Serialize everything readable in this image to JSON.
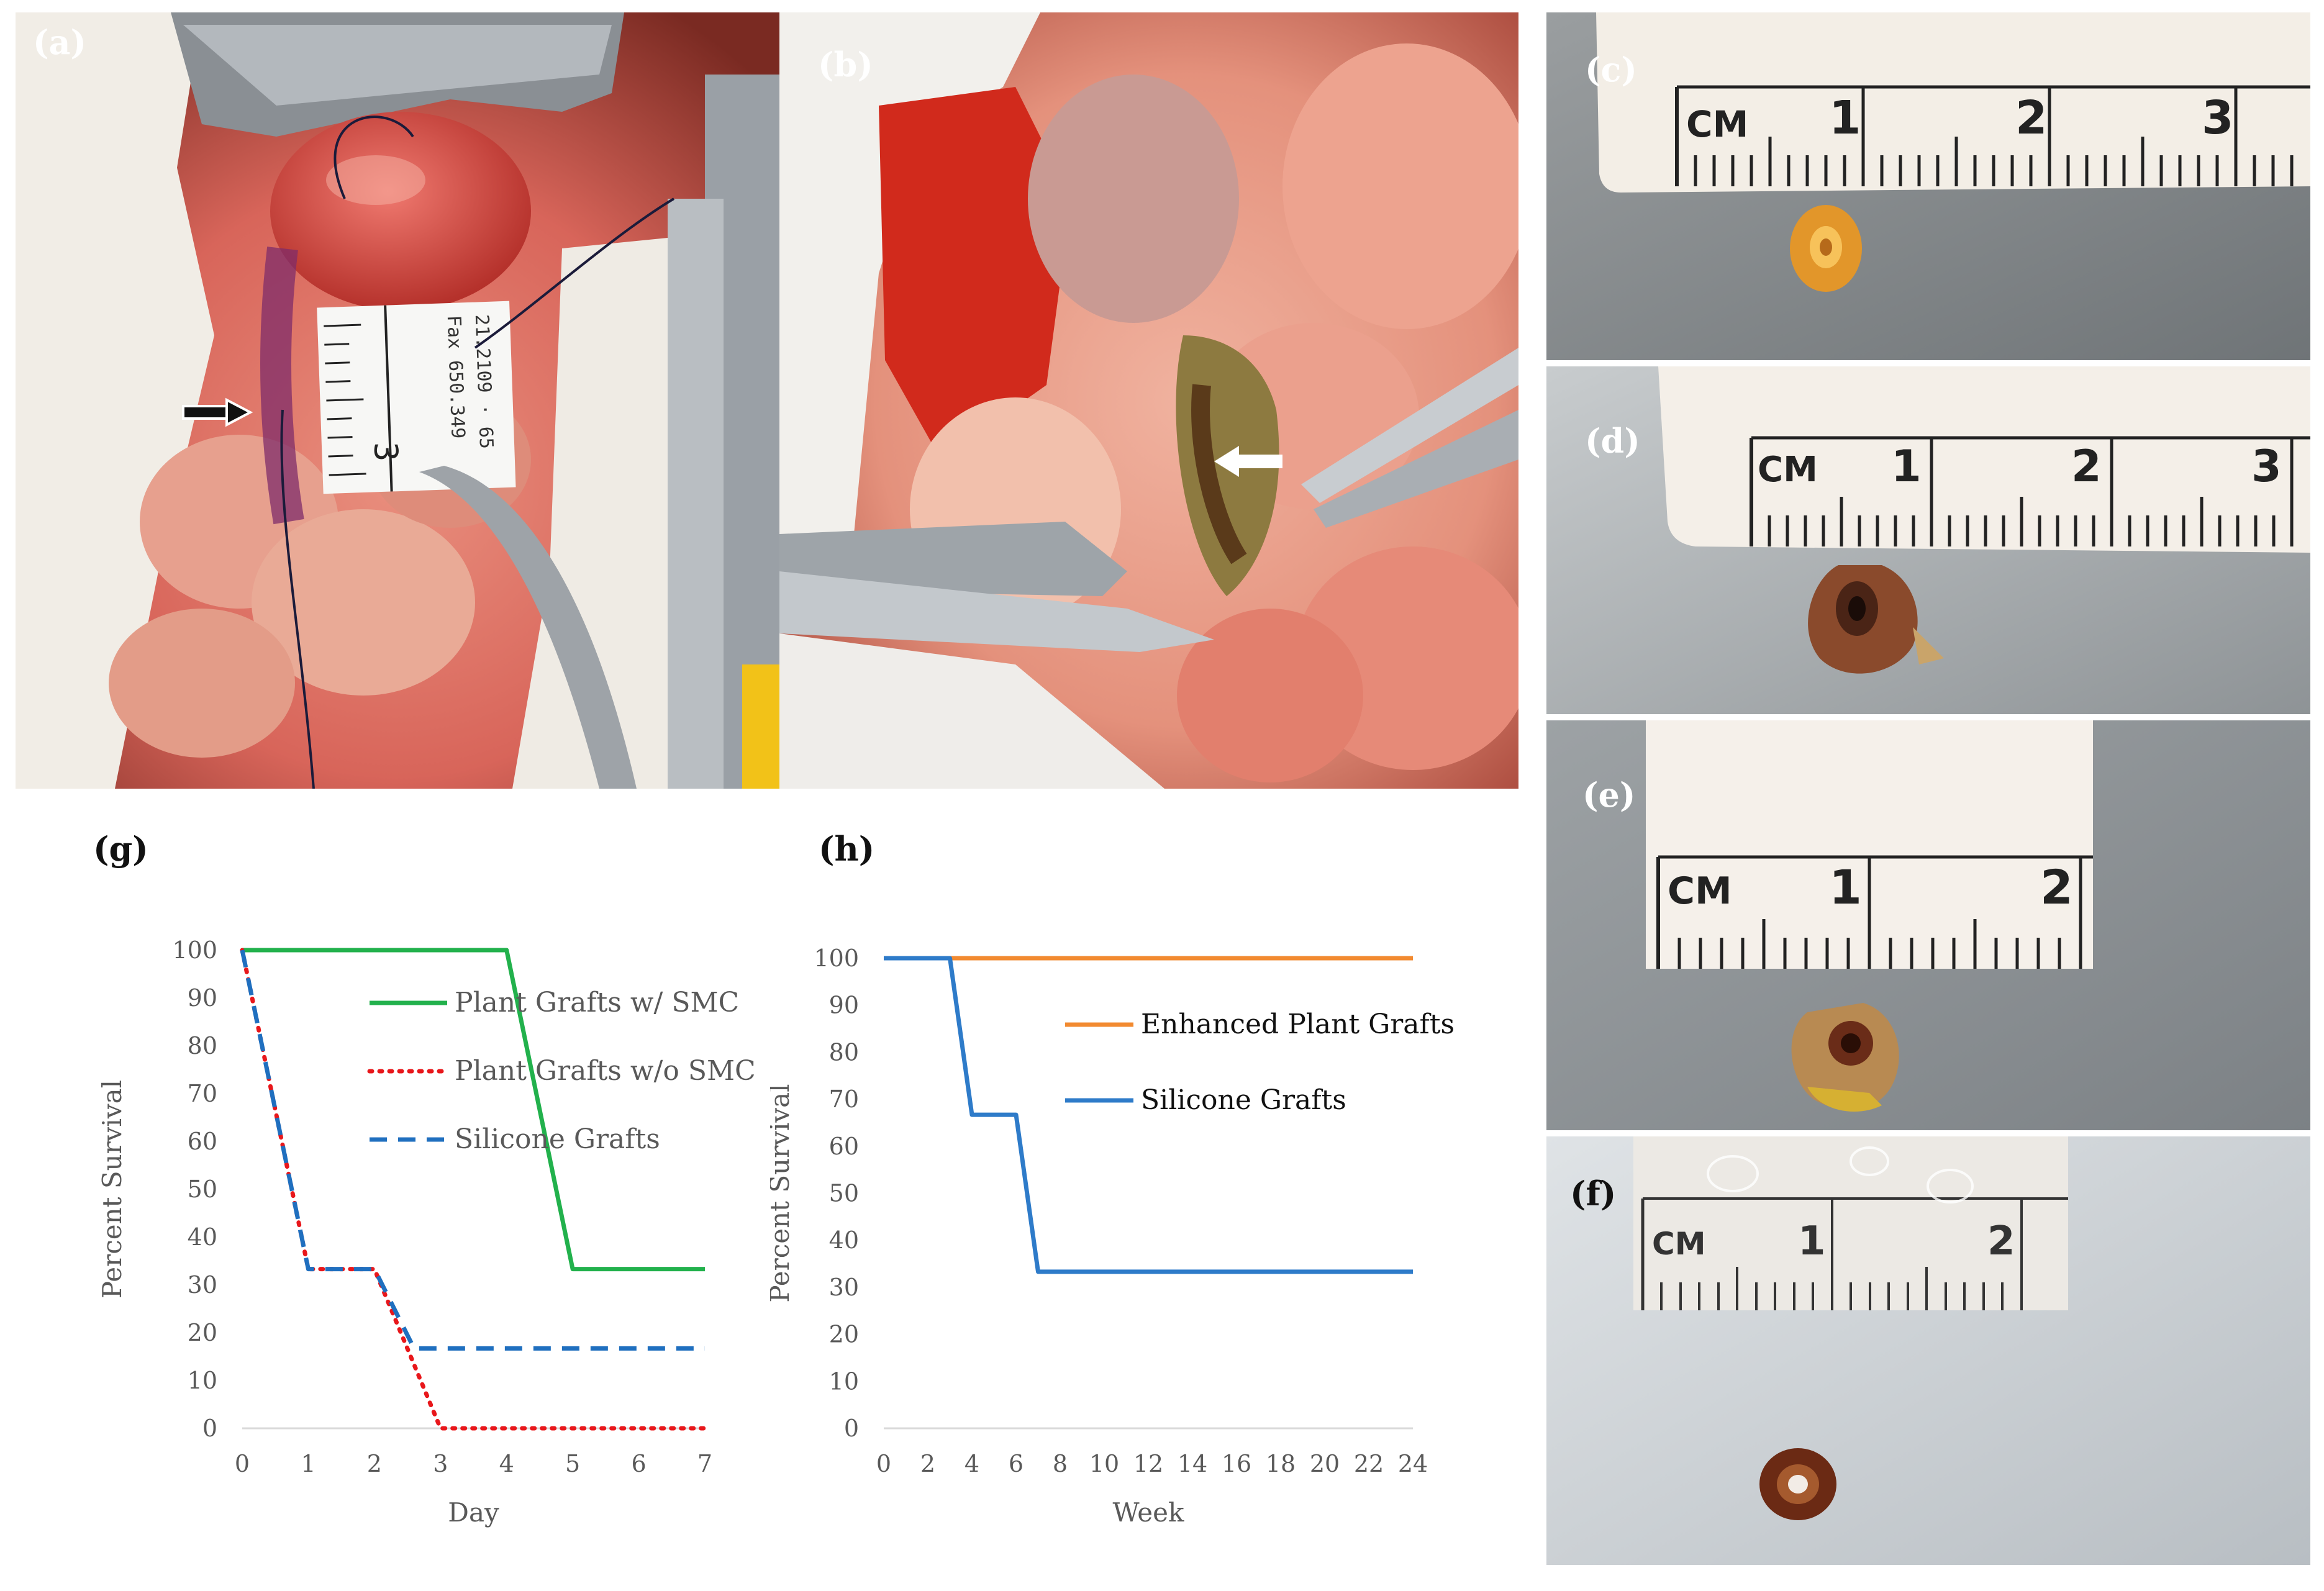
{
  "figure": {
    "panel_labels": {
      "a": "(a)",
      "b": "(b)",
      "c": "(c)",
      "d": "(d)",
      "e": "(e)",
      "f": "(f)",
      "g": "(g)",
      "h": "(h)"
    },
    "ruler_labels": {
      "a": {
        "big_digit": "3",
        "side_text_1": "21.2109 · 65",
        "side_text_2": "Fax 650.349"
      },
      "c": {
        "unit": "CM",
        "n1": "1",
        "n2": "2",
        "n3": "3"
      },
      "d": {
        "unit": "CM",
        "n1": "1",
        "n2": "2",
        "n3": "3"
      },
      "e": {
        "unit": "CM",
        "n1": "1",
        "n2": "2"
      },
      "f": {
        "unit": "CM",
        "n1": "1",
        "n2": "2"
      }
    },
    "colors": {
      "green": "#22b14c",
      "red_dotted": "#e8171b",
      "blue_dashed": "#1f6fbf",
      "orange": "#f28a30",
      "blue": "#2e7bc9",
      "axis_text": "#595959"
    }
  },
  "chart_data": [
    {
      "id": "g",
      "type": "line",
      "xlabel": "Day",
      "ylabel": "Percent Survival",
      "x": [
        0,
        1,
        2,
        3,
        4,
        5,
        6,
        7
      ],
      "xlim": [
        0,
        7
      ],
      "ylim": [
        0,
        100
      ],
      "yticks": [
        0,
        10,
        20,
        30,
        40,
        50,
        60,
        70,
        80,
        90,
        100
      ],
      "grid": false,
      "legend_position": "right, inside plot",
      "series": [
        {
          "name": "Plant Grafts w/ SMC",
          "style": "solid",
          "color": "#22b14c",
          "points": [
            [
              0,
              100
            ],
            [
              4,
              100
            ],
            [
              5,
              33.3
            ],
            [
              7,
              33.3
            ]
          ]
        },
        {
          "name": "Plant Grafts w/o SMC",
          "style": "dotted",
          "color": "#e8171b",
          "points": [
            [
              0,
              100
            ],
            [
              1,
              33.3
            ],
            [
              2,
              33.3
            ],
            [
              3,
              0
            ],
            [
              7,
              0
            ]
          ]
        },
        {
          "name": "Silicone Grafts",
          "style": "dashed",
          "color": "#1f6fbf",
          "points": [
            [
              0,
              100
            ],
            [
              1,
              33.3
            ],
            [
              2,
              33.3
            ],
            [
              2.6,
              16.7
            ],
            [
              7,
              16.7
            ]
          ]
        }
      ]
    },
    {
      "id": "h",
      "type": "line",
      "xlabel": "Week",
      "ylabel": "Percent Survival",
      "x": [
        0,
        2,
        4,
        6,
        8,
        10,
        12,
        14,
        16,
        18,
        20,
        22,
        24
      ],
      "xlim": [
        0,
        24
      ],
      "ylim": [
        0,
        100
      ],
      "yticks": [
        0,
        10,
        20,
        30,
        40,
        50,
        60,
        70,
        80,
        90,
        100
      ],
      "grid": false,
      "legend_position": "center-right, inside plot",
      "series": [
        {
          "name": "Enhanced Plant Grafts",
          "style": "solid",
          "color": "#f28a30",
          "points": [
            [
              0,
              100
            ],
            [
              24,
              100
            ]
          ]
        },
        {
          "name": "Silicone Grafts",
          "style": "solid",
          "color": "#2e7bc9",
          "points": [
            [
              0,
              100
            ],
            [
              3,
              100
            ],
            [
              4,
              66.7
            ],
            [
              6,
              66.7
            ],
            [
              7,
              33.3
            ],
            [
              24,
              33.3
            ]
          ]
        }
      ]
    }
  ]
}
